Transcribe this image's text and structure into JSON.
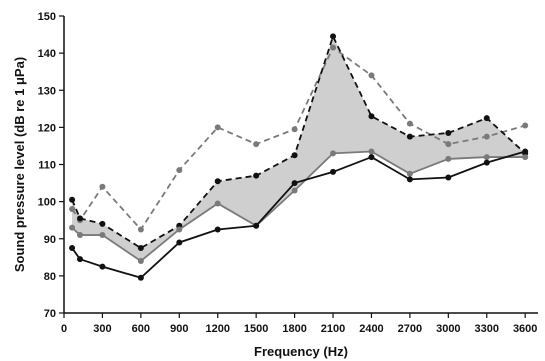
{
  "chart_data": {
    "type": "line",
    "title": "",
    "xlabel": "Frequency (Hz)",
    "ylabel": "Sound pressure level (dB re 1 μPa)",
    "ylim": [
      70,
      150
    ],
    "xlim": [
      0,
      3700
    ],
    "x_ticks": [
      0,
      300,
      600,
      900,
      1200,
      1500,
      1800,
      2100,
      2400,
      2700,
      3000,
      3300,
      3600
    ],
    "y_ticks": [
      70,
      80,
      90,
      100,
      110,
      120,
      130,
      140,
      150
    ],
    "grid": false,
    "legend": "none",
    "colors": {
      "black": "#111111",
      "gray": "#7a7a7a",
      "band_fill": "#cfcfcf"
    },
    "series": [
      {
        "style": "dashed",
        "color": "#7a7a7a",
        "x": [
          63,
          125,
          300,
          600,
          900,
          1200,
          1500,
          1800,
          2100,
          2400,
          2700,
          3000,
          3300,
          3600
        ],
        "y": [
          98,
          95,
          104,
          92.5,
          108.5,
          120,
          115.5,
          119.5,
          141.5,
          134,
          121,
          115.5,
          117.5,
          120.5
        ]
      },
      {
        "style": "dashed",
        "color": "#111111",
        "x": [
          63,
          125,
          300,
          600,
          900,
          1200,
          1500,
          1800,
          2100,
          2400,
          2700,
          3000,
          3300,
          3600
        ],
        "y": [
          100.5,
          95.5,
          94,
          87.5,
          93.5,
          105.5,
          107,
          112.5,
          144.5,
          123,
          117.5,
          118.5,
          122.5,
          113
        ]
      },
      {
        "style": "solid",
        "color": "#7a7a7a",
        "x": [
          63,
          125,
          300,
          600,
          900,
          1200,
          1500,
          1800,
          2100,
          2400,
          2700,
          3000,
          3300,
          3600
        ],
        "y": [
          93,
          91,
          91,
          84,
          92.5,
          99.5,
          93.5,
          103,
          113,
          113.5,
          107.5,
          111.5,
          112,
          112
        ]
      },
      {
        "style": "solid",
        "color": "#111111",
        "x": [
          63,
          125,
          300,
          600,
          900,
          1200,
          1500,
          1800,
          2100,
          2400,
          2700,
          3000,
          3300,
          3600
        ],
        "y": [
          87.5,
          84.5,
          82.5,
          79.5,
          89,
          92.5,
          93.5,
          105,
          108,
          112,
          106,
          106.5,
          110.5,
          113.5
        ]
      }
    ],
    "shaded_band": {
      "between_series": [
        1,
        2
      ],
      "color": "#cfcfcf"
    }
  }
}
